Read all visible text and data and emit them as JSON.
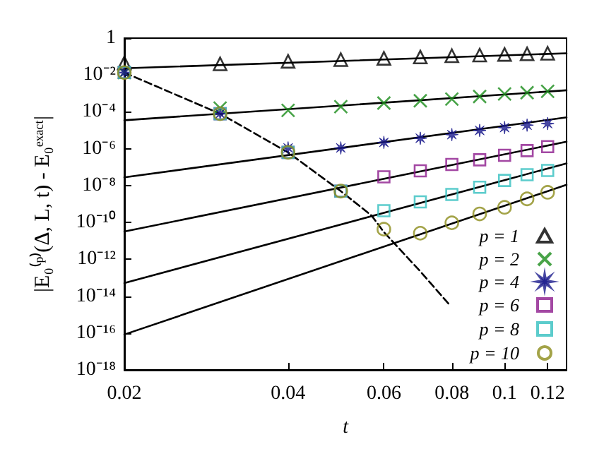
{
  "chart_data": {
    "type": "scatter",
    "xlabel": "t",
    "ylabel": "|E₀⁽ᵖ⁾(Δ, L, t) - E₀ᵉˣᵃᶜᵗ|",
    "log": "xy",
    "grid": false,
    "legend": "bottom right",
    "xlim": [
      0.02,
      0.13
    ],
    "xticks": [
      0.02,
      0.04,
      0.06,
      0.08,
      0.1,
      0.12
    ],
    "ylim": [
      1e-18,
      1
    ],
    "yticks": [
      {
        "value": 1e-18,
        "label": "10⁻¹⁸"
      },
      {
        "value": 1e-16,
        "label": "10⁻¹⁶"
      },
      {
        "value": 1e-14,
        "label": "10⁻¹⁴"
      },
      {
        "value": 1e-12,
        "label": "10⁻¹²"
      },
      {
        "value": 1e-10,
        "label": "10⁻¹⁰"
      },
      {
        "value": 1e-08,
        "label": "10⁻⁸"
      },
      {
        "value": 1e-06,
        "label": "10⁻⁶"
      },
      {
        "value": 0.0001,
        "label": "10⁻⁴"
      },
      {
        "value": 0.01,
        "label": "10⁻²"
      },
      1
    ],
    "series": [
      {
        "type": "line",
        "color": "#000000",
        "line_style": "solid",
        "marker": "none",
        "x": [
          0.02,
          0.13
        ],
        "values": [
          0.023,
          0.15
        ]
      },
      {
        "type": "line",
        "color": "#000000",
        "line_style": "solid",
        "marker": "none",
        "x": [
          0.02,
          0.13
        ],
        "values": [
          3.5e-05,
          0.00148
        ]
      },
      {
        "type": "line",
        "color": "#000000",
        "line_style": "solid",
        "marker": "none",
        "x": [
          0.02,
          0.13
        ],
        "values": [
          2.8e-08,
          5e-05
        ]
      },
      {
        "type": "line",
        "color": "#000000",
        "line_style": "solid",
        "marker": "none",
        "x": [
          0.02,
          0.13
        ],
        "values": [
          3.2e-11,
          2.4e-06
        ]
      },
      {
        "type": "line",
        "color": "#000000",
        "line_style": "solid",
        "marker": "none",
        "x": [
          0.02,
          0.13
        ],
        "values": [
          5.1e-14,
          1.6e-07
        ]
      },
      {
        "type": "line",
        "color": "#000000",
        "line_style": "solid",
        "marker": "none",
        "x": [
          0.02,
          0.13
        ],
        "values": [
          8.3e-17,
          1.1e-08
        ]
      },
      {
        "type": "line",
        "color": "#000000",
        "line_style": "dashed",
        "marker": "none",
        "x": [
          0.02,
          0.03,
          0.04,
          0.05,
          0.057,
          0.06,
          0.07,
          0.079
        ],
        "values": [
          0.0135,
          7.9e-05,
          6.3e-07,
          5e-09,
          2.3e-10,
          3e-11,
          2.2e-13,
          3.7e-15
        ]
      },
      {
        "name": "p = 1",
        "color": "#000000",
        "marker": "triangle",
        "x": [
          0.02,
          0.03,
          0.04,
          0.05,
          0.06,
          0.07,
          0.08,
          0.09,
          0.1,
          0.11,
          0.12
        ],
        "values": [
          0.045,
          0.04,
          0.055,
          0.068,
          0.08,
          0.094,
          0.11,
          0.12,
          0.13,
          0.14,
          0.15
        ]
      },
      {
        "name": "p = 2",
        "color": "#1a8c1a",
        "marker": "cross",
        "x": [
          0.02,
          0.03,
          0.04,
          0.05,
          0.06,
          0.07,
          0.08,
          0.09,
          0.1,
          0.11,
          0.12
        ],
        "values": [
          0.0135,
          0.00016,
          0.00012,
          0.00019,
          0.0003,
          0.0004,
          0.00049,
          0.00068,
          0.00093,
          0.0011,
          0.0013
        ]
      },
      {
        "name": "p = 4",
        "color": "#1a1a8c",
        "marker": "star",
        "x": [
          0.02,
          0.03,
          0.04,
          0.05,
          0.06,
          0.07,
          0.08,
          0.09,
          0.1,
          0.11,
          0.12
        ],
        "values": [
          0.0135,
          7.9e-05,
          1.1e-06,
          1.1e-06,
          2.2e-06,
          3.7e-06,
          5.8e-06,
          9.8e-06,
          1.4e-05,
          1.9e-05,
          2.3e-05
        ]
      },
      {
        "name": "p = 6",
        "color": "#8c1a8c",
        "marker": "square",
        "x": [
          0.02,
          0.03,
          0.04,
          0.05,
          0.06,
          0.07,
          0.08,
          0.09,
          0.1,
          0.11,
          0.12
        ],
        "values": [
          0.0135,
          7.9e-05,
          6.3e-07,
          5e-09,
          3e-08,
          6.3e-08,
          1.4e-07,
          2.5e-07,
          4.4e-07,
          7.9e-07,
          1.3e-06
        ]
      },
      {
        "name": "p = 8",
        "color": "#33bfbf",
        "marker": "square",
        "x": [
          0.02,
          0.03,
          0.04,
          0.05,
          0.06,
          0.07,
          0.08,
          0.09,
          0.1,
          0.11,
          0.12
        ],
        "values": [
          0.0135,
          7.9e-05,
          6.3e-07,
          5e-09,
          4.3e-10,
          1.3e-09,
          3.3e-09,
          8.1e-09,
          1.9e-08,
          3.9e-08,
          6.6e-08
        ]
      },
      {
        "name": "p = 10",
        "color": "#8c8c1a",
        "marker": "circle",
        "x": [
          0.02,
          0.03,
          0.04,
          0.05,
          0.06,
          0.07,
          0.08,
          0.09,
          0.1,
          0.11,
          0.12
        ],
        "values": [
          0.0135,
          7.9e-05,
          6.3e-07,
          5e-09,
          4.3e-11,
          2.6e-11,
          9.5e-11,
          2.9e-10,
          6.6e-10,
          1.9e-09,
          4.3e-09
        ]
      }
    ]
  }
}
